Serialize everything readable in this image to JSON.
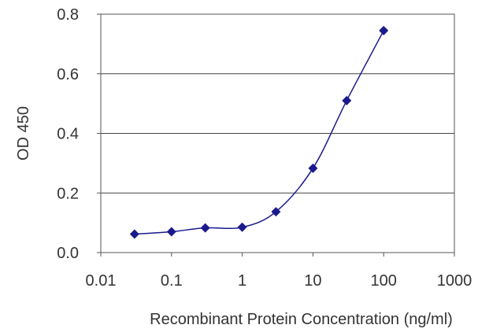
{
  "chart_data": {
    "type": "line",
    "xlabel": "Recombinant Protein Concentration (ng/ml)",
    "ylabel": "OD 450",
    "x_scale": "log",
    "xlim": [
      0.01,
      1000
    ],
    "ylim": [
      0,
      0.8
    ],
    "x_ticks": [
      "0.01",
      "0.1",
      "1",
      "10",
      "100",
      "1000"
    ],
    "x_tick_values": [
      0.01,
      0.1,
      1,
      10,
      100,
      1000
    ],
    "y_ticks": [
      "0.0",
      "0.2",
      "0.4",
      "0.6",
      "0.8"
    ],
    "y_tick_values": [
      0,
      0.2,
      0.4,
      0.6,
      0.8
    ],
    "grid": "horizontal",
    "series": [
      {
        "color": "#1a1a8c",
        "marker": "diamond",
        "points": [
          {
            "x": 0.03,
            "y": 0.062
          },
          {
            "x": 0.1,
            "y": 0.07
          },
          {
            "x": 0.3,
            "y": 0.083
          },
          {
            "x": 1,
            "y": 0.085
          },
          {
            "x": 3,
            "y": 0.137
          },
          {
            "x": 10,
            "y": 0.283
          },
          {
            "x": 30,
            "y": 0.51
          },
          {
            "x": 100,
            "y": 0.745
          }
        ]
      }
    ]
  }
}
